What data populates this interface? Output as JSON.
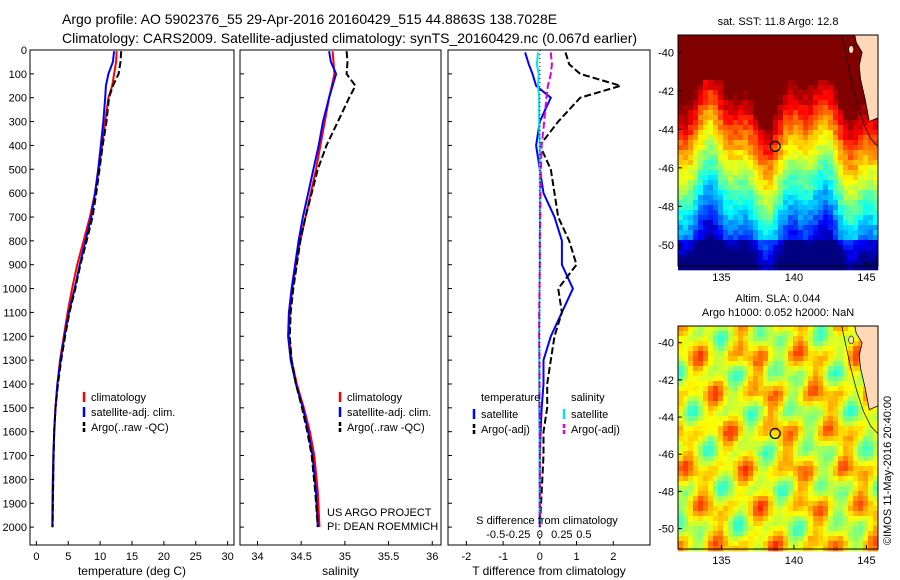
{
  "header": {
    "title_line1": "Argo profile: AO 5902376_55 29-Apr-2016 20160429_515 44.8863S 138.7028E",
    "title_line2": "Climatology: CARS2009. Satellite-adjusted climatology: synTS_20160429.nc (0.067d earlier)"
  },
  "colors": {
    "climatology": "#ff0000",
    "satellite": "#0000ff",
    "argo": "#000000",
    "sat_salinity": "#00e5ee",
    "argo_salinity": "#dd00dd"
  },
  "chart_data": [
    {
      "type": "line",
      "xlabel": "temperature (deg C)",
      "ylabel": "",
      "xlim": [
        -1,
        31
      ],
      "ylim": [
        2075,
        0
      ],
      "xticks": [
        0,
        5,
        10,
        15,
        20,
        25,
        30
      ],
      "yticks": [
        0,
        100,
        200,
        300,
        400,
        500,
        600,
        700,
        800,
        900,
        1000,
        1100,
        1200,
        1300,
        1400,
        1500,
        1600,
        1700,
        1800,
        1900,
        2000
      ],
      "legend": {
        "position": "lower-middle",
        "entries": [
          "climatology",
          "satellite-adj. clim.",
          "Argo(..raw -QC)"
        ]
      },
      "series": [
        {
          "name": "climatology",
          "color": "#ff0000",
          "style": "solid",
          "x": [
            12.6,
            12.5,
            12.2,
            11.9,
            11.3,
            10.8,
            10.3,
            9.8,
            9.2,
            8.4,
            7.4,
            6.4,
            5.6,
            4.9,
            4.3,
            3.7,
            3.3,
            3.0,
            2.8,
            2.7,
            2.6,
            2.55
          ],
          "y": [
            5,
            50,
            100,
            150,
            200,
            300,
            400,
            500,
            600,
            700,
            800,
            900,
            1000,
            1100,
            1200,
            1300,
            1400,
            1500,
            1600,
            1700,
            1850,
            2000
          ]
        },
        {
          "name": "satellite-adj. clim.",
          "color": "#0000ff",
          "style": "solid",
          "x": [
            12.2,
            12.0,
            11.3,
            10.9,
            10.8,
            10.5,
            10.1,
            9.7,
            9.2,
            8.6,
            7.7,
            6.8,
            6.0,
            5.1,
            4.4,
            3.8,
            3.3,
            3.0,
            2.8,
            2.65,
            2.55,
            2.5
          ],
          "y": [
            5,
            50,
            100,
            150,
            200,
            300,
            400,
            500,
            600,
            700,
            800,
            900,
            1000,
            1100,
            1200,
            1300,
            1400,
            1500,
            1600,
            1700,
            1850,
            2000
          ]
        },
        {
          "name": "Argo(..raw -QC)",
          "color": "#000000",
          "style": "dashed",
          "x": [
            13.3,
            13.2,
            12.9,
            12.0,
            11.4,
            11.0,
            10.4,
            9.9,
            9.4,
            8.8,
            7.9,
            6.9,
            6.1,
            5.2,
            4.5,
            3.9,
            3.4,
            3.0,
            2.8,
            2.7,
            2.6,
            2.55
          ],
          "y": [
            5,
            50,
            100,
            150,
            200,
            300,
            400,
            500,
            600,
            700,
            800,
            900,
            1000,
            1100,
            1200,
            1300,
            1400,
            1500,
            1600,
            1700,
            1850,
            2000
          ]
        }
      ]
    },
    {
      "type": "line",
      "xlabel": "salinity",
      "ylabel": "",
      "xlim": [
        33.8,
        36.1
      ],
      "ylim": [
        2075,
        0
      ],
      "xticks": [
        34,
        34.5,
        35,
        35.5,
        36
      ],
      "xticklabels": [
        "34",
        "34.5",
        "35",
        "35.5",
        "36"
      ],
      "legend": {
        "position": "lower-middle",
        "entries": [
          "climatology",
          "satellite-adj. clim.",
          "Argo(..raw -QC)"
        ]
      },
      "annotations": [
        "US ARGO PROJECT",
        "PI: DEAN ROEMMICH"
      ],
      "series": [
        {
          "name": "climatology",
          "color": "#ff0000",
          "style": "solid",
          "x": [
            34.86,
            34.87,
            34.88,
            34.85,
            34.82,
            34.77,
            34.72,
            34.67,
            34.61,
            34.55,
            34.49,
            34.44,
            34.4,
            34.37,
            34.36,
            34.39,
            34.45,
            34.53,
            34.6,
            34.65,
            34.69,
            34.71
          ],
          "y": [
            5,
            50,
            100,
            150,
            200,
            300,
            400,
            500,
            600,
            700,
            800,
            900,
            1000,
            1100,
            1200,
            1300,
            1400,
            1500,
            1600,
            1700,
            1850,
            2000
          ]
        },
        {
          "name": "satellite-adj. clim.",
          "color": "#0000ff",
          "style": "solid",
          "x": [
            34.82,
            34.84,
            34.9,
            34.86,
            34.82,
            34.75,
            34.7,
            34.64,
            34.58,
            34.52,
            34.47,
            34.43,
            34.39,
            34.36,
            34.35,
            34.38,
            34.44,
            34.52,
            34.58,
            34.63,
            34.67,
            34.69
          ],
          "y": [
            5,
            50,
            100,
            150,
            200,
            300,
            400,
            500,
            600,
            700,
            800,
            900,
            1000,
            1100,
            1200,
            1300,
            1400,
            1500,
            1600,
            1700,
            1850,
            2000
          ]
        },
        {
          "name": "Argo(..raw -QC)",
          "color": "#000000",
          "style": "dashed",
          "x": [
            35.02,
            35.03,
            35.02,
            35.12,
            35.05,
            34.92,
            34.79,
            34.69,
            34.62,
            34.55,
            34.49,
            34.45,
            34.41,
            34.38,
            34.37,
            34.39,
            34.44,
            34.51,
            34.57,
            34.62,
            34.66,
            34.69
          ],
          "y": [
            5,
            50,
            100,
            150,
            200,
            300,
            400,
            500,
            600,
            700,
            800,
            900,
            1000,
            1100,
            1200,
            1300,
            1400,
            1500,
            1600,
            1700,
            1850,
            2000
          ]
        }
      ]
    },
    {
      "type": "line",
      "xlabel": "T difference from climatology",
      "top_label": "S difference from climatology",
      "xlim": [
        -2.5,
        3.0
      ],
      "ylim": [
        2075,
        0
      ],
      "xticks": [
        -2,
        -1,
        0,
        1,
        2
      ],
      "top_ticks": [
        -0.5,
        -0.25,
        0,
        0.25,
        0.5
      ],
      "top_ticklabels": [
        "-0.5",
        "-0.25",
        "0",
        "0.25",
        "0.5"
      ],
      "legend": {
        "position": "lower-middle",
        "groups": [
          {
            "title": "temperature",
            "entries": [
              "satellite",
              "Argo(-adj)"
            ]
          },
          {
            "title": "salinity",
            "entries": [
              "satellite",
              "Argo(-adj)"
            ]
          }
        ]
      },
      "series": [
        {
          "name": "temperature satellite",
          "color": "#0000ff",
          "style": "solid",
          "x": [
            -0.4,
            -0.3,
            -0.2,
            -0.1,
            0.3,
            0.0,
            -0.1,
            0.0,
            0.1,
            0.4,
            0.6,
            0.6,
            0.9,
            0.6,
            0.3,
            0.1,
            0.1,
            0.05,
            0.02,
            0.0,
            0.0,
            0.0
          ],
          "y": [
            10,
            60,
            100,
            150,
            200,
            300,
            400,
            500,
            600,
            700,
            800,
            900,
            1000,
            1100,
            1200,
            1300,
            1400,
            1500,
            1600,
            1700,
            1850,
            2000
          ]
        },
        {
          "name": "temperature Argo(-adj)",
          "color": "#000000",
          "style": "dashed",
          "x": [
            0.7,
            0.8,
            1.1,
            2.2,
            1.1,
            0.5,
            0.0,
            0.3,
            0.4,
            0.5,
            0.8,
            1.0,
            0.5,
            0.6,
            0.4,
            0.3,
            0.2,
            0.2,
            0.1,
            0.1,
            0.05,
            0.0
          ],
          "y": [
            10,
            60,
            100,
            150,
            200,
            300,
            400,
            500,
            600,
            700,
            800,
            900,
            1000,
            1100,
            1200,
            1300,
            1400,
            1500,
            1600,
            1700,
            1850,
            2000
          ]
        },
        {
          "name": "salinity satellite",
          "color": "#00e5ee",
          "style": "solid",
          "x": [
            -0.05,
            -0.08,
            -0.03,
            -0.05,
            -0.02,
            -0.02,
            0.0,
            0.0,
            0.0,
            0.0,
            0.0,
            0.0,
            -0.01,
            -0.01,
            -0.02,
            -0.02,
            -0.02,
            -0.02,
            -0.01,
            -0.01,
            -0.01,
            0.0
          ],
          "y": [
            10,
            60,
            100,
            150,
            200,
            300,
            400,
            500,
            600,
            700,
            800,
            900,
            1000,
            1100,
            1200,
            1300,
            1400,
            1500,
            1600,
            1700,
            1850,
            2000
          ]
        },
        {
          "name": "salinity Argo(-adj)",
          "color": "#dd00dd",
          "style": "dashed",
          "x": [
            0.3,
            0.33,
            0.3,
            0.22,
            0.18,
            0.12,
            0.05,
            0.03,
            0.02,
            0.01,
            0.0,
            0.0,
            -0.01,
            -0.02,
            -0.02,
            -0.01,
            -0.01,
            -0.01,
            0.0,
            0.0,
            0.0,
            0.0
          ],
          "y": [
            10,
            60,
            100,
            150,
            200,
            300,
            400,
            500,
            600,
            700,
            800,
            900,
            1000,
            1100,
            1200,
            1300,
            1400,
            1500,
            1600,
            1700,
            1850,
            2000
          ]
        }
      ]
    },
    {
      "type": "heatmap",
      "title": "sat. SST: 11.8 Argo: 12.8",
      "xlim": [
        132,
        145.8
      ],
      "ylim": [
        -51.1,
        -39.1
      ],
      "xticks": [
        135,
        140,
        145
      ],
      "yticks": [
        -40,
        -42,
        -44,
        -46,
        -48,
        -50
      ],
      "marker": {
        "lon": 138.7028,
        "lat": -44.8863
      }
    },
    {
      "type": "heatmap",
      "title": "Altim. SLA: 0.044",
      "subtitle": "Argo h1000: 0.052 h2000: NaN",
      "xlim": [
        132,
        145.8
      ],
      "ylim": [
        -51.1,
        -39.1
      ],
      "xticks": [
        135,
        140,
        145
      ],
      "yticks": [
        -40,
        -42,
        -44,
        -46,
        -48,
        -50
      ],
      "marker": {
        "lon": 138.7028,
        "lat": -44.8863
      }
    }
  ],
  "credit": "©IMOS 11-May-2016 20:40:00"
}
